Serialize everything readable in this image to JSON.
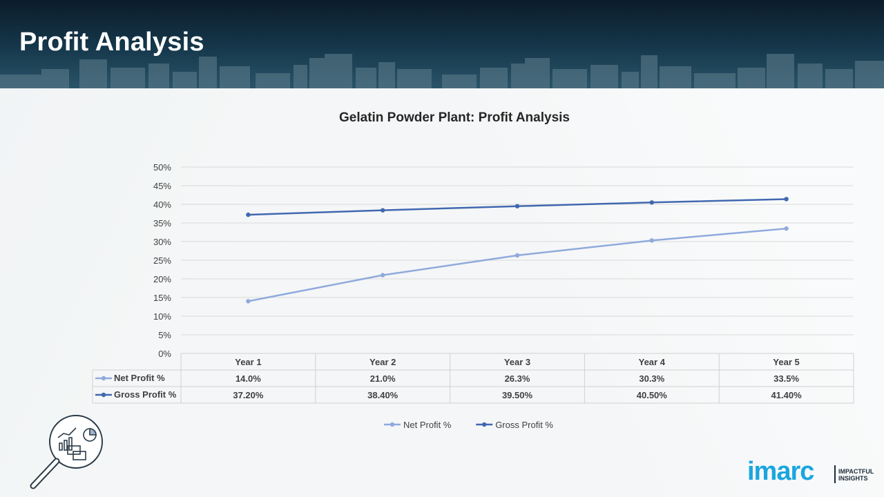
{
  "header": {
    "title": "Profit Analysis"
  },
  "chart_data": {
    "type": "line",
    "title": "Gelatin Powder Plant: Profit Analysis",
    "categories": [
      "Year 1",
      "Year 2",
      "Year 3",
      "Year 4",
      "Year 5"
    ],
    "yticks": [
      "0%",
      "5%",
      "10%",
      "15%",
      "20%",
      "25%",
      "30%",
      "35%",
      "40%",
      "45%",
      "50%"
    ],
    "ylim": [
      0,
      50
    ],
    "grid": true,
    "legend_position": "bottom",
    "has_data_table": true,
    "series": [
      {
        "name": "Net Profit %",
        "values": [
          14.0,
          21.0,
          26.3,
          30.3,
          33.5
        ],
        "labels": [
          "14.0%",
          "21.0%",
          "26.3%",
          "30.3%",
          "33.5%"
        ],
        "color": "#8faadc"
      },
      {
        "name": "Gross Profit %",
        "values": [
          37.2,
          38.4,
          39.5,
          40.5,
          41.4
        ],
        "labels": [
          "37.20%",
          "38.40%",
          "39.50%",
          "40.50%",
          "41.40%"
        ],
        "color": "#4068b0"
      }
    ]
  },
  "logo": {
    "word": "imarc",
    "tagline_1": "IMPACTFUL",
    "tagline_2": "INSIGHTS",
    "color": "#1aa6de"
  },
  "icons": {
    "decor": "magnifier-analytics-icon"
  }
}
